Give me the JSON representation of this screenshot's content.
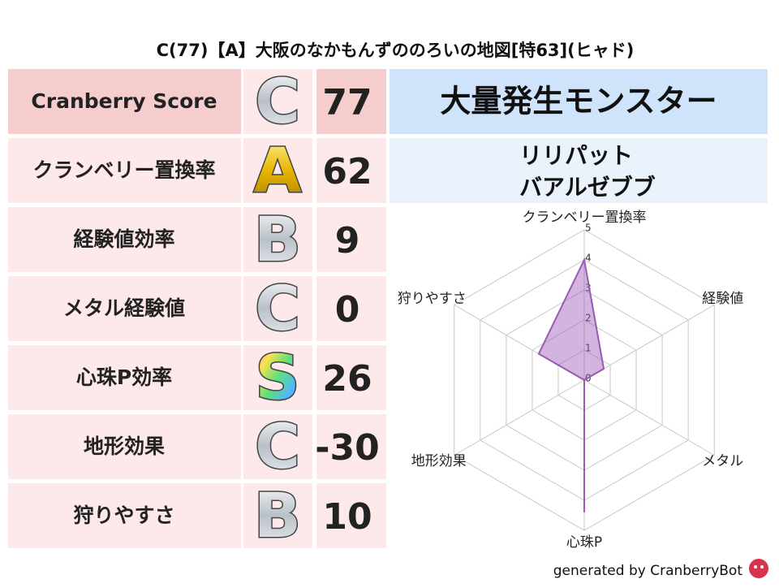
{
  "title": "C(77)【A】大阪のなかもんずののろいの地図[特63](ヒャド)",
  "table": {
    "rows": [
      [
        "Cranberry Score",
        "C",
        77
      ],
      [
        "クランベリー置換率",
        "A",
        62
      ],
      [
        "経験値効率",
        "B",
        9
      ],
      [
        "メタル経験値",
        "C",
        0
      ],
      [
        "心珠P効率",
        "S",
        26
      ],
      [
        "地形効果",
        "C",
        -30
      ],
      [
        "狩りやすさ",
        "B",
        10
      ]
    ]
  },
  "monsters": {
    "header": "大量発生モンスター",
    "names": [
      "リリパット",
      "バアルゼブブ"
    ]
  },
  "chart_data": {
    "type": "radar",
    "categories": [
      "クランベリー置換率",
      "経験値",
      "メタル",
      "心珠P",
      "地形効果",
      "狩りやすさ"
    ],
    "values": [
      4,
      0.75,
      0,
      4.4,
      0,
      1.75
    ],
    "rlim": [
      0,
      5
    ],
    "rticks": [
      0,
      1,
      2,
      3,
      4,
      5
    ],
    "color": "#9b59b6",
    "grid": true
  },
  "footer": "generated by CranberryBot"
}
